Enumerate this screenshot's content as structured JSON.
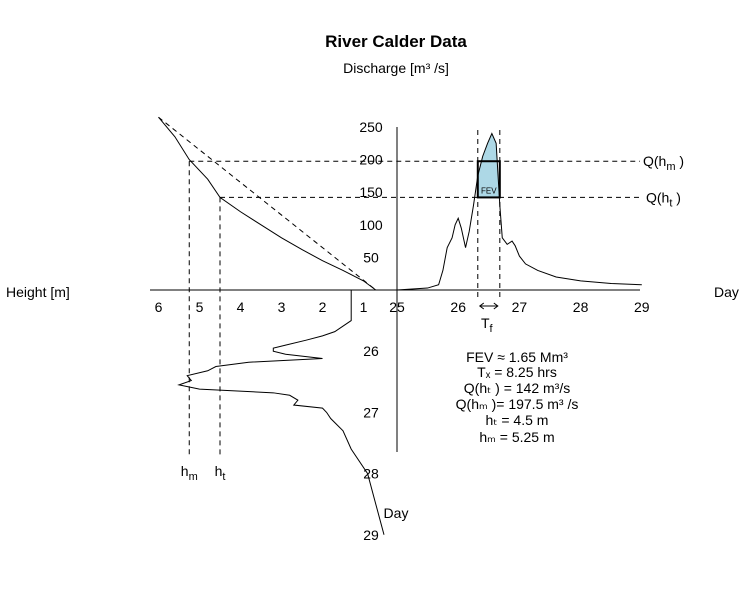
{
  "chart_data": {
    "type": "line",
    "title": "River Calder Data",
    "subtitle": "Discharge [m³ /s]",
    "left_axis_label": "Height [m]",
    "right_axis_label": "Day",
    "bottom_axis_label": "Day",
    "grid": false,
    "panels": {
      "hydrograph": {
        "x_label": "Day",
        "y_label": "Discharge [m³ /s]",
        "xlim": [
          25,
          29
        ],
        "ylim": [
          0,
          250
        ],
        "x_ticks": [
          "25",
          "26",
          "27",
          "28",
          "29"
        ],
        "y_ticks": [
          "50",
          "100",
          "150",
          "200",
          "250"
        ],
        "series": [
          {
            "x": [
              25.0,
              25.5,
              25.68,
              25.75,
              25.82,
              25.9,
              25.95,
              26.0,
              26.05,
              26.12,
              26.18,
              26.25,
              26.32,
              26.4,
              26.48,
              26.55,
              26.62,
              26.68,
              26.72,
              26.8,
              26.88,
              26.93,
              27.0,
              27.1,
              27.3,
              27.6,
              28.0,
              28.5,
              29.0
            ],
            "y": [
              0,
              3,
              8,
              30,
              65,
              80,
              100,
              110,
              95,
              65,
              90,
              130,
              175,
              205,
              225,
              240,
              225,
              130,
              80,
              70,
              75,
              68,
              52,
              40,
              30,
              20,
              14,
              10,
              8
            ]
          }
        ]
      },
      "rating_curve": {
        "x_label": "Height [m]",
        "xlim": [
          6,
          1
        ],
        "x_ticks": [
          "6",
          "5",
          "4",
          "3",
          "2",
          "1"
        ],
        "series": [
          {
            "height": [
              6.0,
              5.6,
              5.25,
              4.8,
              4.5,
              4.0,
              3.5,
              3.0,
              2.5,
              2.0,
              1.5,
              1.0,
              0.7
            ],
            "discharge": [
              265,
              235,
              200,
              170,
              142,
              120,
              100,
              80,
              62,
              45,
              30,
              14,
              0
            ]
          }
        ],
        "linear_reference": {
          "height": [
            6.0,
            0.7
          ],
          "discharge": [
            265,
            0
          ]
        }
      },
      "stage_hydrograph": {
        "y_label": "Day",
        "ylim": [
          25,
          29
        ],
        "y_ticks": [
          "26",
          "27",
          "28",
          "29"
        ],
        "series": [
          {
            "day": [
              25.0,
              25.5,
              25.68,
              25.75,
              25.82,
              25.9,
              25.95,
              26.0,
              26.05,
              26.12,
              26.18,
              26.25,
              26.32,
              26.4,
              26.48,
              26.55,
              26.62,
              26.68,
              26.72,
              26.8,
              26.88,
              26.93,
              27.0,
              27.1,
              27.3,
              27.6,
              28.0,
              28.5,
              29.0
            ],
            "height": [
              1.3,
              1.3,
              1.7,
              2.0,
              2.4,
              2.9,
              3.2,
              3.2,
              2.9,
              2.0,
              3.8,
              4.6,
              4.8,
              5.3,
              5.2,
              5.5,
              5.0,
              3.2,
              2.8,
              2.6,
              2.7,
              2.0,
              1.9,
              1.8,
              1.5,
              1.3,
              0.9,
              0.7,
              0.5
            ]
          }
        ]
      }
    },
    "thresholds": {
      "Q_hm": {
        "label": "Q(h",
        "sub": "m",
        "tail": " )",
        "value": 197.5
      },
      "Q_ht": {
        "label": "Q(h",
        "sub": "t",
        "tail": " )",
        "value": 142
      },
      "h_m": {
        "label": "h",
        "sub": "m",
        "value": 5.25
      },
      "h_t": {
        "label": "h",
        "sub": "t",
        "value": 4.5
      }
    },
    "fev_box": {
      "label": "FEV",
      "day_start": 26.32,
      "day_end": 26.68
    },
    "tf_marker": {
      "label": "T",
      "sub": "f"
    },
    "annotations": [
      "FEV ≈ 1.65 Mm³",
      "Tₓ = 8.25 hrs",
      "Q(hₜ ) = 142 m³/s",
      "Q(hₘ )= 197.5 m³ /s",
      "hₜ = 4.5 m",
      "hₘ = 5.25 m"
    ],
    "colors": {
      "fev_fill": "#add8e6",
      "line": "#000000"
    }
  }
}
